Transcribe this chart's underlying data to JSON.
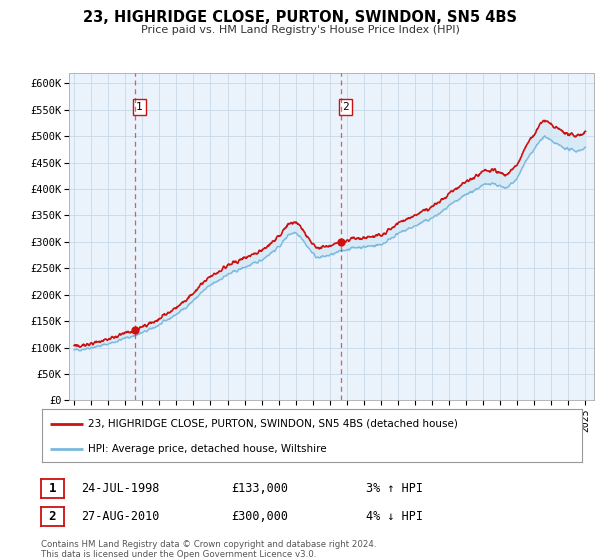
{
  "title": "23, HIGHRIDGE CLOSE, PURTON, SWINDON, SN5 4BS",
  "subtitle": "Price paid vs. HM Land Registry's House Price Index (HPI)",
  "fig_bg_color": "#ffffff",
  "plot_bg_color": "#eaf2fb",
  "grid_color": "#c8d8e8",
  "ylim": [
    0,
    620000
  ],
  "yticks": [
    0,
    50000,
    100000,
    150000,
    200000,
    250000,
    300000,
    350000,
    400000,
    450000,
    500000,
    550000,
    600000
  ],
  "ytick_labels": [
    "£0",
    "£50K",
    "£100K",
    "£150K",
    "£200K",
    "£250K",
    "£300K",
    "£350K",
    "£400K",
    "£450K",
    "£500K",
    "£550K",
    "£600K"
  ],
  "xlim_start": 1994.7,
  "xlim_end": 2025.5,
  "xtick_years": [
    1995,
    1996,
    1997,
    1998,
    1999,
    2000,
    2001,
    2002,
    2003,
    2004,
    2005,
    2006,
    2007,
    2008,
    2009,
    2010,
    2011,
    2012,
    2013,
    2014,
    2015,
    2016,
    2017,
    2018,
    2019,
    2020,
    2021,
    2022,
    2023,
    2024,
    2025
  ],
  "sale1_x": 1998.56,
  "sale1_y": 133000,
  "sale1_label": "1",
  "sale1_date": "24-JUL-1998",
  "sale1_price": "£133,000",
  "sale1_hpi": "3% ↑ HPI",
  "sale2_x": 2010.66,
  "sale2_y": 300000,
  "sale2_label": "2",
  "sale2_date": "27-AUG-2010",
  "sale2_price": "£300,000",
  "sale2_hpi": "4% ↓ HPI",
  "property_line_color": "#cc1111",
  "hpi_line_color": "#7ab8de",
  "hpi_fill_color": "#d0e8f5",
  "legend_line1": "23, HIGHRIDGE CLOSE, PURTON, SWINDON, SN5 4BS (detached house)",
  "legend_line2": "HPI: Average price, detached house, Wiltshire",
  "footer_line1": "Contains HM Land Registry data © Crown copyright and database right 2024.",
  "footer_line2": "This data is licensed under the Open Government Licence v3.0."
}
